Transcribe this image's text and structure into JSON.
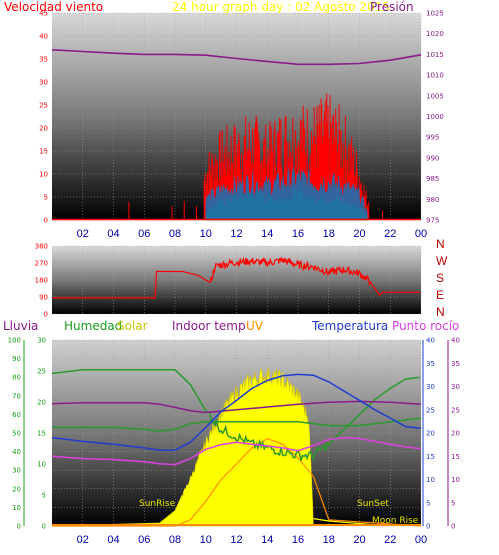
{
  "colors": {
    "panel_dark": "#000000",
    "panel_light": "#d4d4d4",
    "grid": "#a0a0a0",
    "wind": "#ff0000",
    "gust": "#ff0000",
    "wind_avg": "#1f6fb0",
    "wind_green": "#1aa01a",
    "pressure": "#8b1a8b",
    "direction": "#ff0000",
    "humidity": "#2a9a2a",
    "solar": "#ffff00",
    "solar_edge": "#d6c800",
    "indoor": "#8b1a8b",
    "uv": "#ff8c00",
    "temperature": "#1e3ccf",
    "dewpoint": "#e040e0",
    "rain": "#ff8c00",
    "axis_dir": "#c00000"
  },
  "header": {
    "wind_label": "Velocidad viento",
    "title": "24 hour graph day : 02 Agosto 2015",
    "pressure_label": "Presión"
  },
  "legend_bottom": {
    "rain": "Lluvia",
    "humidity": "Humedad",
    "solar": "Solar",
    "indoor": "Indoor temp",
    "uv": "UV",
    "temperature": "Temperatura",
    "dewpoint": "Punto rocío"
  },
  "annotations": {
    "sunrise": "SunRise",
    "sunset": "SunSet",
    "moonrise": "Moon Rise"
  },
  "x_ticks": [
    "02",
    "04",
    "06",
    "08",
    "10",
    "12",
    "14",
    "16",
    "18",
    "20",
    "22",
    "00"
  ],
  "direction_labels": [
    "N",
    "W",
    "S",
    "E",
    "N"
  ],
  "chart_data": [
    {
      "type": "line",
      "name": "wind",
      "x_range_hours": [
        0,
        24
      ],
      "y_left": {
        "ticks": [
          0,
          5,
          10,
          15,
          20,
          25,
          30,
          35,
          40,
          45
        ],
        "range": [
          0,
          45
        ]
      },
      "y_right": {
        "ticks": [
          975,
          980,
          985,
          990,
          995,
          1000,
          1005,
          1010,
          1015,
          1020,
          1025
        ],
        "range": [
          975,
          1025
        ]
      },
      "pressure": {
        "x": [
          0,
          2,
          4,
          6,
          8,
          10,
          12,
          14,
          16,
          18,
          20,
          22,
          24
        ],
        "y": [
          1016.1,
          1015.7,
          1015.3,
          1015.0,
          1015.0,
          1014.8,
          1014.0,
          1013.3,
          1012.6,
          1012.6,
          1012.8,
          1013.6,
          1014.9
        ]
      },
      "gust_peaks": {
        "x": [
          5.0,
          7.8,
          8.6,
          9.4,
          10.0,
          11.0,
          12.0,
          13.0,
          14.0,
          15.0,
          16.0,
          17.0,
          18.0,
          19.0,
          20.0,
          20.6,
          21.5
        ],
        "y": [
          4,
          3,
          4,
          3,
          15,
          20,
          22,
          24,
          21,
          25,
          26,
          26,
          28,
          24,
          14,
          4,
          2
        ]
      },
      "avg_speed": {
        "x": [
          10,
          11,
          12,
          13,
          14,
          15,
          16,
          17,
          18,
          19,
          20,
          20.5
        ],
        "y": [
          5,
          7,
          8,
          9,
          8,
          9,
          10,
          9,
          9,
          8,
          6,
          2
        ]
      },
      "green_speed": {
        "x": [
          10,
          11,
          12,
          13,
          14,
          15,
          16,
          17,
          18,
          19,
          20,
          20.5
        ],
        "y": [
          2,
          4,
          5,
          6,
          5,
          5,
          6,
          5,
          5,
          4,
          3,
          1
        ]
      }
    },
    {
      "type": "line",
      "name": "wind_direction",
      "y_left": {
        "ticks": [
          0,
          90,
          180,
          270,
          360
        ],
        "range": [
          0,
          360
        ]
      },
      "direction": {
        "x": [
          0,
          4,
          6.7,
          6.8,
          8.5,
          9.5,
          10.3,
          10.6,
          11,
          12,
          13,
          14,
          15,
          16,
          17,
          18,
          19,
          20,
          20.7,
          21.3,
          21.5,
          24
        ],
        "y": [
          85,
          85,
          85,
          225,
          225,
          205,
          165,
          250,
          260,
          275,
          280,
          270,
          285,
          260,
          250,
          220,
          235,
          215,
          170,
          100,
          115,
          115
        ]
      }
    },
    {
      "type": "line",
      "name": "weather",
      "y_left_rain": {
        "ticks": [
          0,
          10,
          20,
          30,
          40,
          50,
          60,
          70,
          80,
          90,
          100
        ],
        "range": [
          0,
          100
        ]
      },
      "y_left_uv": {
        "ticks": [
          0,
          5,
          10,
          15,
          20,
          25,
          30
        ],
        "range": [
          0,
          30
        ]
      },
      "y_right_temp": {
        "ticks": [
          0,
          5,
          10,
          15,
          20,
          25,
          30,
          35,
          40
        ],
        "range": [
          0,
          40
        ]
      },
      "humidity": {
        "x": [
          0,
          2,
          4,
          6,
          7,
          8,
          9,
          10,
          11,
          12,
          13,
          14,
          15,
          16,
          17,
          18,
          19,
          20,
          21,
          22,
          23,
          24
        ],
        "y": [
          82,
          84,
          84,
          84,
          84,
          84,
          76,
          62,
          52,
          48,
          44,
          42,
          40,
          38,
          38,
          44,
          52,
          60,
          68,
          74,
          79,
          80
        ]
      },
      "green_mid": {
        "x": [
          0,
          2,
          4,
          6,
          7,
          8,
          9,
          10,
          12,
          14,
          16,
          18,
          20,
          22,
          24
        ],
        "y": [
          53,
          53,
          53,
          52,
          51,
          52,
          55,
          56,
          56,
          56,
          56,
          54,
          54,
          56,
          58
        ]
      },
      "indoor": {
        "x": [
          0,
          2,
          4,
          6,
          7,
          8,
          9,
          10,
          12,
          14,
          16,
          18,
          20,
          22,
          24
        ],
        "y": [
          26.3,
          26.5,
          26.5,
          26.5,
          26.2,
          25.5,
          24.8,
          24.4,
          25.0,
          25.6,
          26.2,
          26.6,
          26.8,
          26.6,
          26.2
        ]
      },
      "temperature": {
        "x": [
          0,
          2,
          4,
          6,
          7,
          8,
          9,
          10,
          11,
          12,
          13,
          14,
          15,
          16,
          17,
          18,
          19,
          20,
          21,
          22,
          23,
          24
        ],
        "y": [
          19,
          18.2,
          17.6,
          16.8,
          16.3,
          16.3,
          18,
          21.2,
          24.6,
          27,
          29.6,
          31.3,
          32.3,
          32.6,
          32.4,
          31,
          29,
          27,
          25,
          23.2,
          21.4,
          21
        ]
      },
      "dewpoint": {
        "x": [
          0,
          2,
          4,
          6,
          7,
          8,
          9,
          10,
          11,
          12,
          13,
          14,
          15,
          16,
          17,
          18,
          19,
          20,
          21,
          22,
          23,
          24
        ],
        "y": [
          15,
          14.5,
          14.3,
          13.8,
          13.4,
          13.2,
          14.5,
          16.5,
          17.5,
          18,
          17.6,
          17.2,
          16.8,
          16.2,
          17.3,
          18.6,
          19,
          18.8,
          18.2,
          17.6,
          17.0,
          16.6
        ]
      },
      "solar_uv_scale": {
        "x": [
          0,
          7,
          8,
          9,
          10,
          11,
          12,
          13,
          14,
          15,
          16,
          16.7,
          17,
          18,
          24
        ],
        "y": [
          0,
          0.5,
          2.5,
          8,
          14,
          19,
          22.5,
          24.6,
          25.4,
          24.6,
          22,
          18,
          1,
          0,
          0
        ]
      },
      "uv": {
        "x": [
          0,
          8,
          9,
          10,
          11,
          12,
          13,
          14,
          15,
          16,
          17,
          18,
          24
        ],
        "y": [
          0,
          0,
          1,
          4,
          7.5,
          10,
          12.6,
          14.1,
          13.2,
          11,
          8,
          1,
          0
        ]
      }
    }
  ]
}
